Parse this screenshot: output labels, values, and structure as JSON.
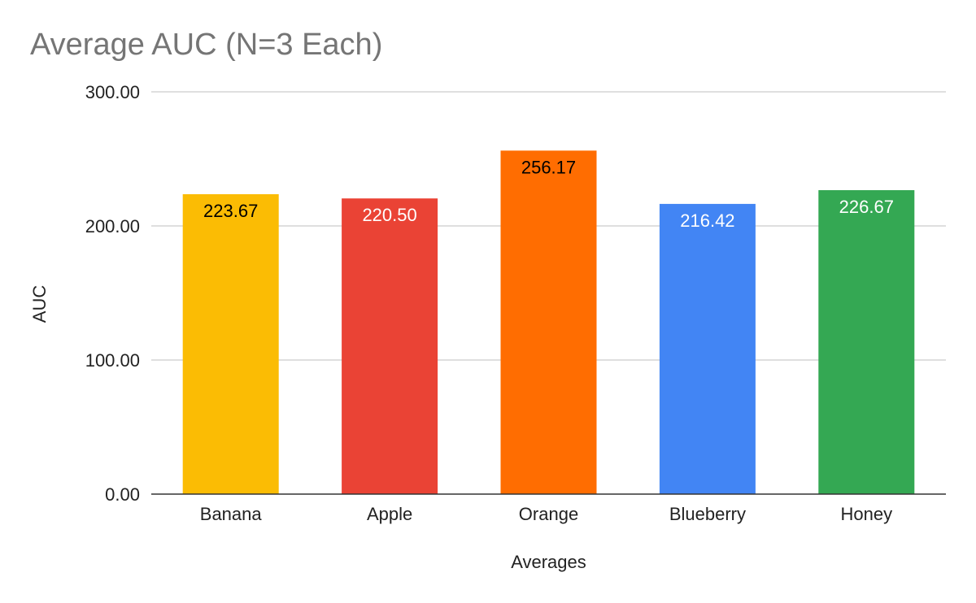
{
  "chart_data": {
    "type": "bar",
    "title": "Average AUC (N=3 Each)",
    "xlabel": "Averages",
    "ylabel": "AUC",
    "ylim": [
      0,
      300
    ],
    "yticks": [
      "0.00",
      "100.00",
      "200.00",
      "300.00"
    ],
    "grid": true,
    "categories": [
      "Banana",
      "Apple",
      "Orange",
      "Blueberry",
      "Honey"
    ],
    "values": [
      223.67,
      220.5,
      256.17,
      216.42,
      226.67
    ],
    "data_labels": [
      "223.67",
      "220.50",
      "256.17",
      "216.42",
      "226.67"
    ],
    "colors": [
      "#FBBC04",
      "#EA4335",
      "#FF6D01",
      "#4285F4",
      "#34A853"
    ],
    "label_colors": [
      "#000000",
      "#ffffff",
      "#000000",
      "#ffffff",
      "#ffffff"
    ]
  }
}
